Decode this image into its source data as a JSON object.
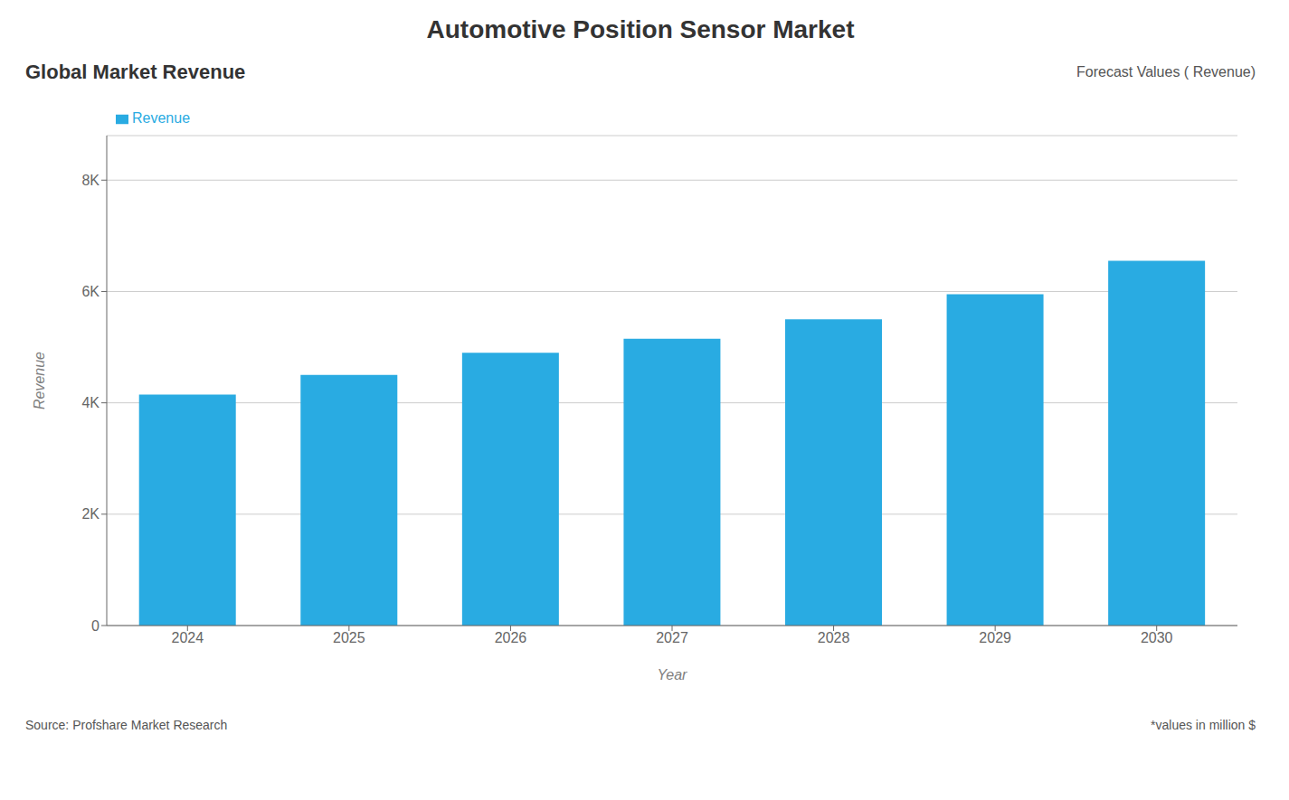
{
  "chart_data": {
    "type": "bar",
    "title": "Automotive Position Sensor Market",
    "subtitle": "Global Market Revenue",
    "annotations": [
      "Forecast Values ( Revenue)",
      "Source: Profshare Market Research",
      "*values in million $"
    ],
    "xlabel": "Year",
    "ylabel": "Revenue",
    "categories": [
      "2024",
      "2025",
      "2026",
      "2027",
      "2028",
      "2029",
      "2030"
    ],
    "series": [
      {
        "name": "Revenue",
        "color": "#29ABE2",
        "values": [
          4150,
          4500,
          4900,
          5150,
          5500,
          5950,
          6550
        ]
      }
    ],
    "ylim": [
      0,
      8800
    ],
    "yticks": [
      0,
      {
        "value": 2000,
        "label": "2K"
      },
      {
        "value": 4000,
        "label": "4K"
      },
      {
        "value": 6000,
        "label": "6K"
      },
      {
        "value": 8000,
        "label": "8K"
      }
    ],
    "grid": true,
    "legend": "upper left"
  }
}
